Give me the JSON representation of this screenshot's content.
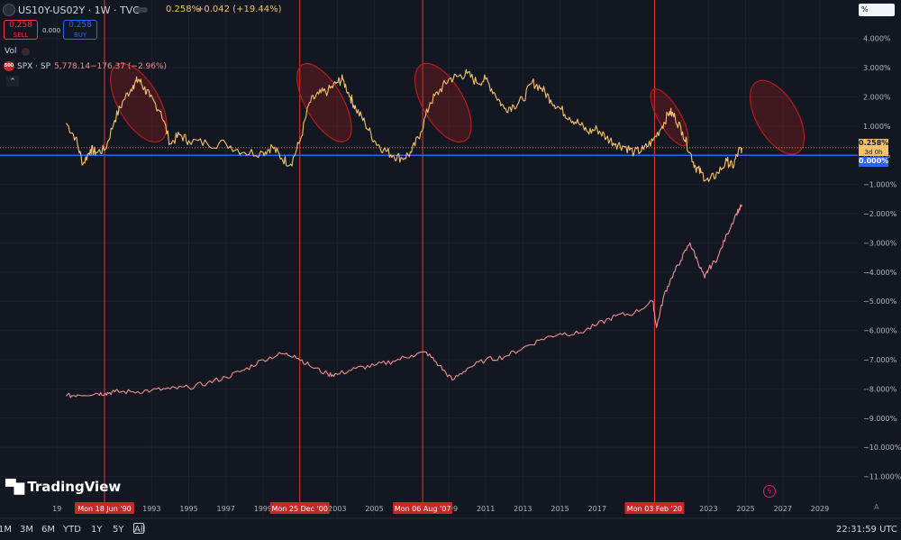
{
  "header": {
    "symbol": "US10Y-US02Y · 1W · TVC",
    "value": "0.258%",
    "change": "+0.042 (+19.44%)",
    "sell_value": "0.258",
    "sell_label": "SELL",
    "spread": "0.000",
    "buy_value": "0.258",
    "buy_label": "BUY",
    "vol_label": "Vol",
    "spx_badge": "500",
    "spx_label": "SPX · SP",
    "spx_value": "5,778.14",
    "spx_change": "−176.37 (−2.96%)",
    "chevron": "⌃",
    "percent_menu": "%",
    "settings_icon": "gear-icon"
  },
  "price_badges": {
    "current_value": "0.258%",
    "countdown": "3d 0h",
    "zero_value": "0.000%"
  },
  "logo": "TradingView",
  "timeframes": [
    "1M",
    "3M",
    "6M",
    "YTD",
    "1Y",
    "5Y",
    "All"
  ],
  "clock": "22:31:59 UTC",
  "colors": {
    "background": "#131722",
    "yield_curve_line": "#f5c26b",
    "spx_line": "#ef8f8f",
    "zero_line": "#2962ff",
    "marker_line": "#e53935",
    "ellipse": "#b71c1c"
  },
  "chart_data": {
    "type": "line",
    "title": "US10Y-US02Y · 1W · TVC",
    "y_axis": {
      "ticks": [
        "4.000%",
        "3.000%",
        "2.000%",
        "1.000%",
        "0.000%",
        "−1.000%",
        "−2.000%",
        "−3.000%",
        "−4.000%",
        "−5.000%",
        "−6.000%",
        "−7.000%",
        "−8.000%",
        "−9.000%",
        "−10.000%",
        "−11.000%"
      ],
      "tick_values": [
        4,
        3,
        2,
        1,
        0,
        -1,
        -2,
        -3,
        -4,
        -5,
        -6,
        -7,
        -8,
        -9,
        -10,
        -11
      ],
      "range": [
        -11.6,
        4.7
      ],
      "label": "%"
    },
    "x_axis": {
      "ticks": [
        "19",
        "1993",
        "1995",
        "1997",
        "1999",
        "2003",
        "2005",
        "2009",
        "2011",
        "2013",
        "2015",
        "2017",
        "2023",
        "2025",
        "2027",
        "2029"
      ],
      "tick_years": [
        1987.9,
        1993,
        1995,
        1997,
        1999,
        2003,
        2005,
        2009,
        2011,
        2013,
        2015,
        2017,
        2023,
        2025,
        2027,
        2029
      ],
      "range": [
        1987.5,
        2030.7
      ]
    },
    "markers": [
      {
        "label": "Mon 18 Jun '90",
        "year": 1990.46
      },
      {
        "label": "Mon 25 Dec '00",
        "year": 2000.98
      },
      {
        "label": "Mon 06 Aug '07",
        "year": 2007.6
      },
      {
        "label": "Mon 03 Feb '20",
        "year": 2020.09
      }
    ],
    "highlight_ellipses": [
      {
        "center_year": 1992.3,
        "center_value": 1.8,
        "rx_years": 1.1,
        "ry_value": 1.5
      },
      {
        "center_year": 2002.3,
        "center_value": 1.8,
        "rx_years": 1.0,
        "ry_value": 1.5
      },
      {
        "center_year": 2008.7,
        "center_value": 1.8,
        "rx_years": 1.1,
        "ry_value": 1.5
      },
      {
        "center_year": 2020.9,
        "center_value": 1.3,
        "rx_years": 0.6,
        "ry_value": 1.1
      },
      {
        "center_year": 2026.7,
        "center_value": 1.3,
        "rx_years": 1.1,
        "ry_value": 1.4
      }
    ],
    "current_value": 0.258,
    "zero_line": 0.0,
    "series": [
      {
        "name": "US10Y-US02Y",
        "x": [
          1988.4,
          1988.9,
          1989.3,
          1989.7,
          1990.0,
          1990.5,
          1991.0,
          1991.5,
          1992.0,
          1992.3,
          1992.6,
          1992.9,
          1993.5,
          1994.0,
          1994.5,
          1995.0,
          1996.0,
          1997.0,
          1998.0,
          1999.0,
          1999.5,
          2000.0,
          2000.5,
          2001.0,
          2001.5,
          2002.0,
          2002.5,
          2003.0,
          2003.3,
          2003.7,
          2004.0,
          2004.5,
          2005.0,
          2005.5,
          2006.0,
          2006.5,
          2007.0,
          2007.5,
          2008.0,
          2008.5,
          2009.0,
          2009.5,
          2010.0,
          2010.5,
          2011.0,
          2011.5,
          2012.0,
          2012.5,
          2013.0,
          2013.5,
          2014.0,
          2014.5,
          2015.0,
          2015.5,
          2016.0,
          2016.5,
          2017.0,
          2017.5,
          2018.0,
          2018.5,
          2019.0,
          2019.5,
          2020.0,
          2020.5,
          2020.9,
          2021.2,
          2021.6,
          2022.0,
          2022.3,
          2022.6,
          2023.0,
          2023.5,
          2024.0,
          2024.3,
          2024.6,
          2024.8
        ],
        "values": [
          1.1,
          0.6,
          -0.3,
          0.2,
          0.1,
          0.2,
          1.2,
          1.9,
          2.4,
          2.6,
          2.3,
          2.0,
          1.5,
          0.4,
          0.7,
          0.5,
          0.4,
          0.4,
          0.1,
          0.1,
          0.3,
          -0.1,
          -0.3,
          0.5,
          1.8,
          2.1,
          2.2,
          2.5,
          2.6,
          2.0,
          1.6,
          1.1,
          0.5,
          0.2,
          0.0,
          -0.1,
          0.1,
          0.8,
          1.8,
          2.2,
          2.6,
          2.7,
          2.8,
          2.5,
          2.6,
          2.1,
          1.6,
          1.7,
          1.9,
          2.5,
          2.3,
          1.9,
          1.6,
          1.3,
          1.1,
          0.8,
          0.9,
          0.6,
          0.4,
          0.3,
          0.1,
          0.2,
          0.5,
          1.0,
          1.5,
          1.3,
          0.8,
          0.1,
          -0.4,
          -0.6,
          -0.9,
          -0.6,
          -0.2,
          -0.4,
          0.1,
          0.258
        ]
      },
      {
        "name": "SPX · SP",
        "x": [
          1988.4,
          1989.0,
          1990.0,
          1990.5,
          1991.0,
          1992.0,
          1993.0,
          1994.0,
          1995.0,
          1996.0,
          1997.0,
          1998.0,
          1999.0,
          2000.0,
          2000.7,
          2001.5,
          2002.5,
          2003.0,
          2004.0,
          2005.0,
          2006.0,
          2007.0,
          2007.8,
          2008.5,
          2009.2,
          2010.0,
          2011.0,
          2012.0,
          2013.0,
          2014.0,
          2015.0,
          2016.0,
          2017.0,
          2018.0,
          2019.0,
          2020.0,
          2020.2,
          2020.6,
          2021.0,
          2021.5,
          2022.0,
          2022.4,
          2022.8,
          2023.0,
          2023.5,
          2024.0,
          2024.5,
          2024.8
        ],
        "values": [
          -8.25,
          -8.2,
          -8.15,
          -8.15,
          -8.1,
          -8.1,
          -8.05,
          -8.0,
          -7.95,
          -7.8,
          -7.6,
          -7.35,
          -7.0,
          -6.8,
          -6.85,
          -7.2,
          -7.5,
          -7.5,
          -7.3,
          -7.2,
          -7.05,
          -6.85,
          -6.75,
          -7.2,
          -7.7,
          -7.3,
          -7.0,
          -6.9,
          -6.6,
          -6.3,
          -6.1,
          -6.1,
          -5.8,
          -5.5,
          -5.4,
          -5.0,
          -5.9,
          -4.8,
          -4.2,
          -3.6,
          -3.0,
          -3.6,
          -4.2,
          -3.9,
          -3.5,
          -2.7,
          -2.0,
          -1.7
        ]
      }
    ]
  }
}
